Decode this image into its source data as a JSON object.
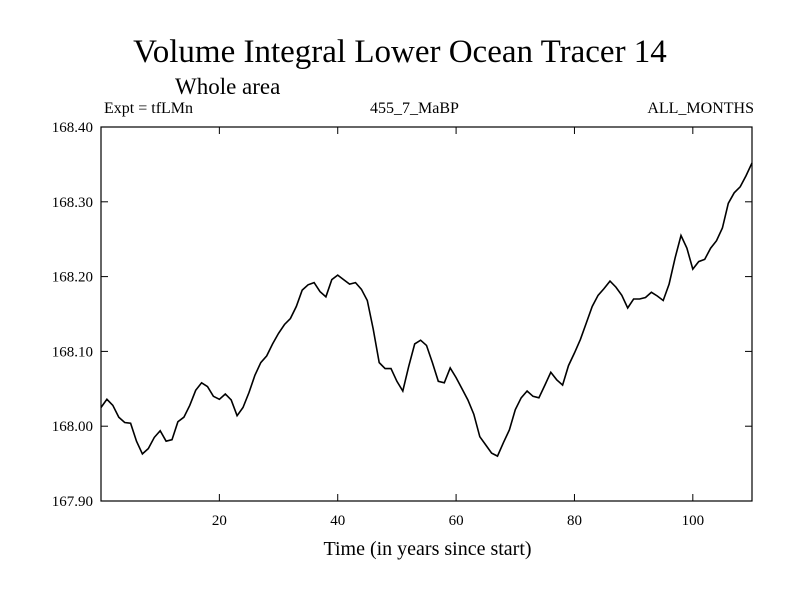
{
  "chart_data": {
    "type": "line",
    "title": "Volume Integral Lower Ocean Tracer 14",
    "subtitle": "Whole area",
    "header_left": "Expt = tfLMn",
    "header_center": "455_7_MaBP",
    "header_right": "ALL_MONTHS",
    "xlabel": "Time (in years since start)",
    "ylabel": "",
    "xlim": [
      0,
      110
    ],
    "ylim": [
      167.9,
      168.4
    ],
    "xticks": [
      20,
      40,
      60,
      80,
      100
    ],
    "yticks": [
      167.9,
      168.0,
      168.1,
      168.2,
      168.3,
      168.4
    ],
    "ytick_labels": [
      "167.90",
      "168.00",
      "168.10",
      "168.20",
      "168.30",
      "168.40"
    ],
    "grid": false,
    "series": [
      {
        "name": "tracer14",
        "color": "#000000",
        "x": [
          0,
          1,
          2,
          3,
          4,
          5,
          6,
          7,
          8,
          9,
          10,
          11,
          12,
          13,
          14,
          15,
          16,
          17,
          18,
          19,
          20,
          21,
          22,
          23,
          24,
          25,
          26,
          27,
          28,
          29,
          30,
          31,
          32,
          33,
          34,
          35,
          36,
          37,
          38,
          39,
          40,
          41,
          42,
          43,
          44,
          45,
          46,
          47,
          48,
          49,
          50,
          51,
          52,
          53,
          54,
          55,
          56,
          57,
          58,
          59,
          60,
          61,
          62,
          63,
          64,
          65,
          66,
          67,
          68,
          69,
          70,
          71,
          72,
          73,
          74,
          75,
          76,
          77,
          78,
          79,
          80,
          81,
          82,
          83,
          84,
          85,
          86,
          87,
          88,
          89,
          90,
          91,
          92,
          93,
          94,
          95,
          96,
          97,
          98,
          99,
          100,
          101,
          102,
          103,
          104,
          105,
          106,
          107,
          108,
          109,
          110
        ],
        "y": [
          168.025,
          168.036,
          168.028,
          168.012,
          168.005,
          168.004,
          167.98,
          167.963,
          167.97,
          167.985,
          167.994,
          167.98,
          167.982,
          168.006,
          168.012,
          168.028,
          168.048,
          168.058,
          168.053,
          168.04,
          168.036,
          168.043,
          168.035,
          168.014,
          168.025,
          168.045,
          168.068,
          168.085,
          168.094,
          168.11,
          168.124,
          168.136,
          168.144,
          168.16,
          168.182,
          168.189,
          168.192,
          168.18,
          168.173,
          168.196,
          168.202,
          168.196,
          168.19,
          168.192,
          168.183,
          168.168,
          168.13,
          168.085,
          168.077,
          168.077,
          168.06,
          168.047,
          168.08,
          168.11,
          168.115,
          168.108,
          168.085,
          168.06,
          168.058,
          168.078,
          168.065,
          168.05,
          168.035,
          168.016,
          167.986,
          167.975,
          167.964,
          167.96,
          167.978,
          167.995,
          168.022,
          168.038,
          168.047,
          168.04,
          168.038,
          168.055,
          168.072,
          168.062,
          168.055,
          168.081,
          168.098,
          168.116,
          168.138,
          168.16,
          168.175,
          168.184,
          168.194,
          168.186,
          168.175,
          168.158,
          168.17,
          168.17,
          168.172,
          168.179,
          168.174,
          168.168,
          168.19,
          168.225,
          168.255,
          168.238,
          168.21,
          168.22,
          168.223,
          168.238,
          168.248,
          168.265,
          168.298,
          168.312,
          168.32,
          168.335,
          168.352
        ]
      }
    ]
  }
}
